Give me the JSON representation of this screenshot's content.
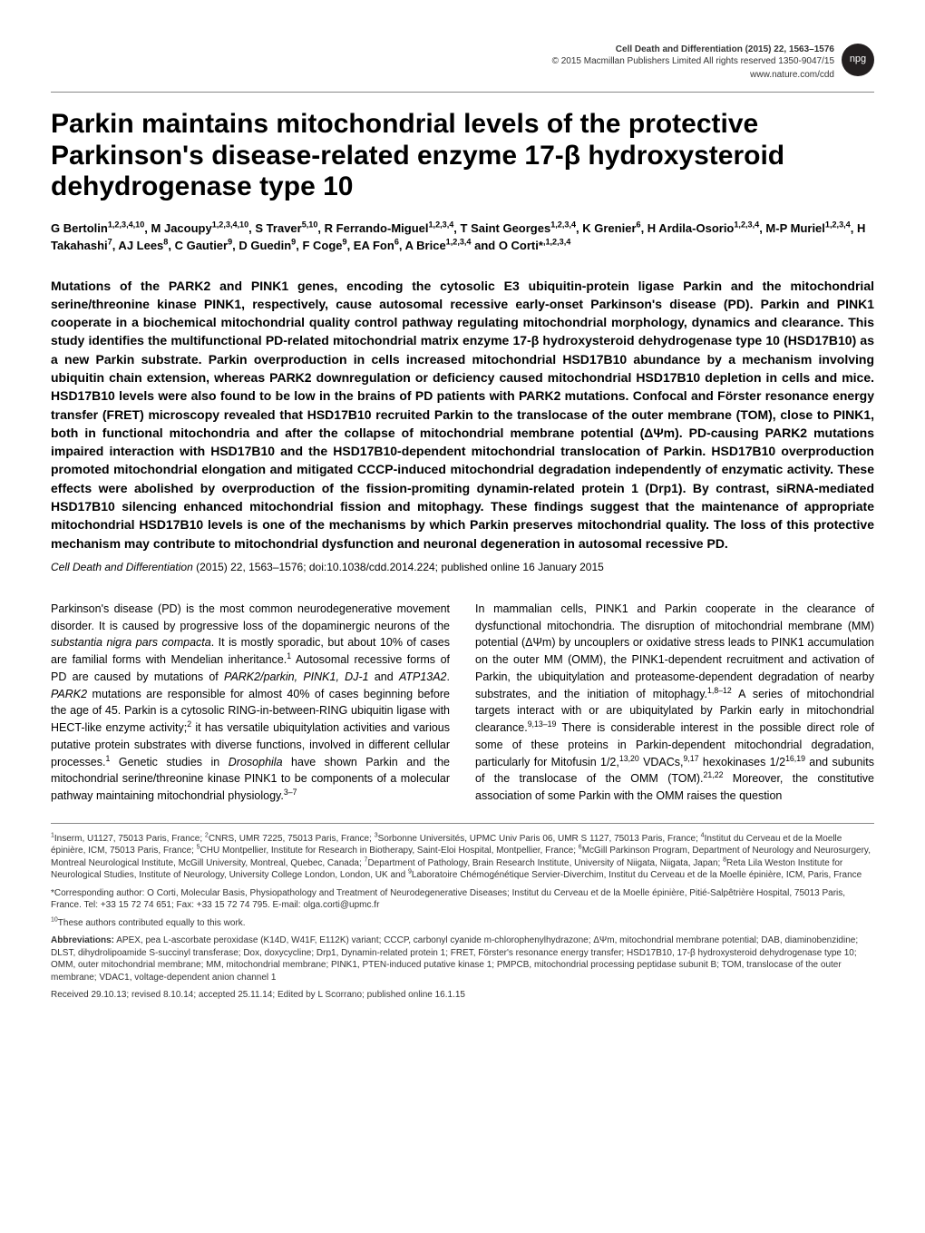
{
  "header": {
    "journal_line": "Cell Death and Differentiation (2015) 22, 1563–1576",
    "copyright_line": "© 2015 Macmillan Publishers Limited  All rights reserved 1350-9047/15",
    "url": "www.nature.com/cdd",
    "badge": "npg"
  },
  "title": "Parkin maintains mitochondrial levels of the protective Parkinson's disease-related enzyme 17-β hydroxysteroid dehydrogenase type 10",
  "authors_html": "G Bertolin<sup>1,2,3,4,10</sup>, M Jacoupy<sup>1,2,3,4,10</sup>, S Traver<sup>5,10</sup>, R Ferrando-Miguel<sup>1,2,3,4</sup>, T Saint Georges<sup>1,2,3,4</sup>, K Grenier<sup>6</sup>, H Ardila-Osorio<sup>1,2,3,4</sup>, M-P Muriel<sup>1,2,3,4</sup>, H Takahashi<sup>7</sup>, AJ Lees<sup>8</sup>, C Gautier<sup>9</sup>, D Guedin<sup>9</sup>, F Coge<sup>9</sup>, EA Fon<sup>6</sup>, A Brice<sup>1,2,3,4</sup> and O Corti*<sup>,1,2,3,4</sup>",
  "abstract": "Mutations of the PARK2 and PINK1 genes, encoding the cytosolic E3 ubiquitin-protein ligase Parkin and the mitochondrial serine/threonine kinase PINK1, respectively, cause autosomal recessive early-onset Parkinson's disease (PD). Parkin and PINK1 cooperate in a biochemical mitochondrial quality control pathway regulating mitochondrial morphology, dynamics and clearance. This study identifies the multifunctional PD-related mitochondrial matrix enzyme 17-β hydroxysteroid dehydrogenase type 10 (HSD17B10) as a new Parkin substrate. Parkin overproduction in cells increased mitochondrial HSD17B10 abundance by a mechanism involving ubiquitin chain extension, whereas PARK2 downregulation or deficiency caused mitochondrial HSD17B10 depletion in cells and mice. HSD17B10 levels were also found to be low in the brains of PD patients with PARK2 mutations. Confocal and Förster resonance energy transfer (FRET) microscopy revealed that HSD17B10 recruited Parkin to the translocase of the outer membrane (TOM), close to PINK1, both in functional mitochondria and after the collapse of mitochondrial membrane potential (ΔΨm). PD-causing PARK2 mutations impaired interaction with HSD17B10 and the HSD17B10-dependent mitochondrial translocation of Parkin. HSD17B10 overproduction promoted mitochondrial elongation and mitigated CCCP-induced mitochondrial degradation independently of enzymatic activity. These effects were abolished by overproduction of the fission-promiting dynamin-related protein 1 (Drp1). By contrast, siRNA-mediated HSD17B10 silencing enhanced mitochondrial fission and mitophagy. These findings suggest that the maintenance of appropriate mitochondrial HSD17B10 levels is one of the mechanisms by which Parkin preserves mitochondrial quality. The loss of this protective mechanism may contribute to mitochondrial dysfunction and neuronal degeneration in autosomal recessive PD.",
  "citation": {
    "journal": "Cell Death and Differentiation",
    "rest": " (2015) 22, 1563–1576; doi:10.1038/cdd.2014.224; published online 16 January 2015"
  },
  "body": {
    "col1_html": "Parkinson's disease (PD) is the most common neurodegenerative movement disorder. It is caused by progressive loss of the dopaminergic neurons of the <i>substantia nigra pars compacta</i>. It is mostly sporadic, but about 10% of cases are familial forms with Mendelian inheritance.<sup>1</sup> Autosomal recessive forms of PD are caused by mutations of <i>PARK2/parkin, PINK1, DJ-1</i> and <i>ATP13A2</i>. <i>PARK2</i> mutations are responsible for almost 40% of cases beginning before the age of 45. Parkin is a cytosolic RING-in-between-RING ubiquitin ligase with HECT-like enzyme activity;<sup>2</sup> it has versatile ubiquitylation activities and various putative protein substrates with diverse functions, involved in different cellular processes.<sup>1</sup> Genetic studies in <i>Drosophila</i> have shown Parkin and the mitochondrial serine/threonine kinase PINK1 to be components of a molecular pathway maintaining mitochondrial physiology.<sup>3–7</sup>",
    "col2_html": "In mammalian cells, PINK1 and Parkin cooperate in the clearance of dysfunctional mitochondria. The disruption of mitochondrial membrane (MM) potential (ΔΨm) by uncouplers or oxidative stress leads to PINK1 accumulation on the outer MM (OMM), the PINK1-dependent recruitment and activation of Parkin, the ubiquitylation and proteasome-dependent degradation of nearby substrates, and the initiation of mitophagy.<sup>1,8–12</sup> A series of mitochondrial targets interact with or are ubiquitylated by Parkin early in mitochondrial clearance.<sup>9,13–19</sup> There is considerable interest in the possible direct role of some of these proteins in Parkin-dependent mitochondrial degradation, particularly for Mitofusin 1/2,<sup>13,20</sup> VDACs,<sup>9,17</sup> hexokinases 1/2<sup>16,19</sup> and subunits of the translocase of the OMM (TOM).<sup>21,22</sup> Moreover, the constitutive association of some Parkin with the OMM raises the question"
  },
  "footnotes": {
    "affiliations_html": "<sup>1</sup>Inserm, U1127, 75013 Paris, France; <sup>2</sup>CNRS, UMR 7225, 75013 Paris, France; <sup>3</sup>Sorbonne Universités, UPMC Univ Paris 06, UMR S 1127, 75013 Paris, France; <sup>4</sup>Institut du Cerveau et de la Moelle épinière, ICM, 75013 Paris, France; <sup>5</sup>CHU Montpellier, Institute for Research in Biotherapy, Saint-Eloi Hospital, Montpellier, France; <sup>6</sup>McGill Parkinson Program, Department of Neurology and Neurosurgery, Montreal Neurological Institute, McGill University, Montreal, Quebec, Canada; <sup>7</sup>Department of Pathology, Brain Research Institute, University of Niigata, Niigata, Japan; <sup>8</sup>Reta Lila Weston Institute for Neurological Studies, Institute of Neurology, University College London, London, UK and <sup>9</sup>Laboratoire Chémogénétique Servier-Diverchim, Institut du Cerveau et de la Moelle épinière, ICM, Paris, France",
    "corresponding": "*Corresponding author: O Corti, Molecular Basis, Physiopathology and Treatment of Neurodegenerative Diseases; Institut du Cerveau et de la Moelle épinière, Pitié-Salpêtrière Hospital, 75013 Paris, France. Tel: +33 15 72 74 651; Fax: +33 15 72 74 795. E-mail: olga.corti@upmc.fr",
    "equal": "10These authors contributed equally to this work.",
    "abbreviations_html": "<b>Abbreviations:</b> APEX, pea L-ascorbate peroxidase (K14D, W41F, E112K) variant; CCCP, carbonyl cyanide m-chlorophenylhydrazone; ΔΨm, mitochondrial membrane potential; DAB, diaminobenzidine; DLST, dihydrolipoamide S-succinyl transferase; Dox, doxycycline; Drp1, Dynamin-related protein 1; FRET, Förster's resonance energy transfer; HSD17B10, 17-β hydroxysteroid dehydrogenase type 10; OMM, outer mitochondrial membrane; MM, mitochondrial membrane; PINK1, PTEN-induced putative kinase 1; PMPCB, mitochondrial processing peptidase subunit B; TOM, translocase of the outer membrane; VDAC1, voltage-dependent anion channel 1",
    "dates": "Received 29.10.13; revised 8.10.14; accepted 25.11.14; Edited by L Scorrano; published online 16.1.15"
  }
}
